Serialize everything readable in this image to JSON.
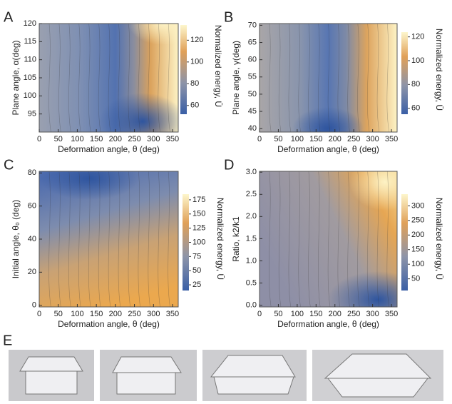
{
  "chart_data": [
    {
      "type": "contour",
      "panel": "A",
      "xlabel": "Deformation angle, θ (deg)",
      "ylabel": "Plane angle, α(deg)",
      "xlim": [
        0,
        365
      ],
      "xticks": [
        0,
        50,
        100,
        150,
        200,
        250,
        300,
        350
      ],
      "ylim": [
        90,
        120
      ],
      "yticks": [
        95,
        100,
        105,
        110,
        115,
        120
      ],
      "colorbar": {
        "label": "Normalized energy, Ū",
        "lim": [
          52,
          134
        ],
        "ticks": [
          60,
          80,
          100,
          120
        ]
      }
    },
    {
      "type": "contour",
      "panel": "B",
      "xlabel": "Deformation angle, θ (deg)",
      "ylabel": "Plane angle, γ(deg)",
      "xlim": [
        0,
        365
      ],
      "xticks": [
        0,
        50,
        100,
        150,
        200,
        250,
        300,
        350
      ],
      "ylim": [
        39,
        70.5
      ],
      "yticks": [
        40,
        45,
        50,
        55,
        60,
        65,
        70
      ],
      "colorbar": {
        "label": "Normalized energy, Ū",
        "lim": [
          55,
          124
        ],
        "ticks": [
          60,
          80,
          100,
          120
        ]
      }
    },
    {
      "type": "contour",
      "panel": "C",
      "xlabel": "Deformation angle, θ (deg)",
      "ylabel": "Initial angle, θ₀ (deg)",
      "xlim": [
        0,
        365
      ],
      "xticks": [
        0,
        50,
        100,
        150,
        200,
        250,
        300,
        350
      ],
      "ylim": [
        -1,
        81
      ],
      "yticks": [
        0,
        20,
        40,
        60,
        80
      ],
      "colorbar": {
        "label": "Normalized energy, Ū",
        "lim": [
          15,
          185
        ],
        "ticks": [
          25,
          50,
          75,
          100,
          125,
          150,
          175
        ]
      }
    },
    {
      "type": "contour",
      "panel": "D",
      "xlabel": "Deformation angle, θ (deg)",
      "ylabel": "Ratio, k2/k1",
      "xlim": [
        0,
        365
      ],
      "xticks": [
        0,
        50,
        100,
        150,
        200,
        250,
        300,
        350
      ],
      "ylim": [
        -0.04,
        3.02
      ],
      "yticks": [
        {
          "value": 0,
          "label": "0.0"
        },
        0.5,
        {
          "value": 1,
          "label": "1.0"
        },
        1.5,
        {
          "value": 2,
          "label": "2.0"
        },
        2.5,
        {
          "value": 3,
          "label": "3.0"
        }
      ],
      "colorbar": {
        "label": "Normalized energy, Ū",
        "lim": [
          10,
          340
        ],
        "ticks": [
          50,
          100,
          150,
          200,
          250,
          300
        ]
      }
    }
  ],
  "photo_panel": {
    "label": "E"
  }
}
